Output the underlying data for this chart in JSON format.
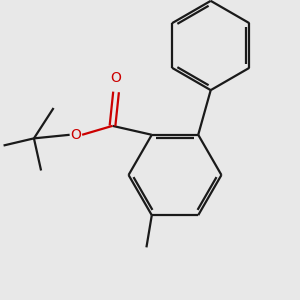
{
  "background_color": "#e8e8e8",
  "bond_color": "#1a1a1a",
  "oxygen_color": "#cc0000",
  "line_width": 1.6,
  "figsize": [
    3.0,
    3.0
  ],
  "dpi": 100
}
